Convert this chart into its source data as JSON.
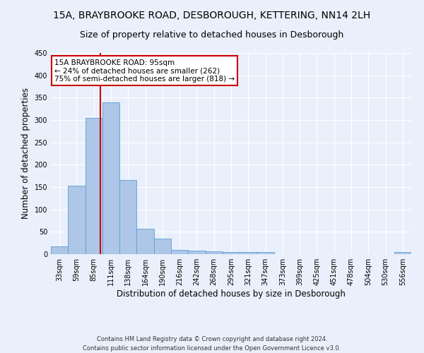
{
  "title": "15A, BRAYBROOKE ROAD, DESBOROUGH, KETTERING, NN14 2LH",
  "subtitle": "Size of property relative to detached houses in Desborough",
  "xlabel": "Distribution of detached houses by size in Desborough",
  "ylabel": "Number of detached properties",
  "footer_line1": "Contains HM Land Registry data © Crown copyright and database right 2024.",
  "footer_line2": "Contains public sector information licensed under the Open Government Licence v3.0.",
  "bar_labels": [
    "33sqm",
    "59sqm",
    "85sqm",
    "111sqm",
    "138sqm",
    "164sqm",
    "190sqm",
    "216sqm",
    "242sqm",
    "268sqm",
    "295sqm",
    "321sqm",
    "347sqm",
    "373sqm",
    "399sqm",
    "425sqm",
    "451sqm",
    "478sqm",
    "504sqm",
    "530sqm",
    "556sqm"
  ],
  "bar_values": [
    17,
    153,
    305,
    340,
    166,
    57,
    35,
    10,
    8,
    6,
    5,
    5,
    5,
    0,
    0,
    0,
    0,
    0,
    0,
    0,
    5
  ],
  "bar_color": "#aec6e8",
  "bar_edge_color": "#5a9fd4",
  "background_color": "#eaf0fb",
  "grid_color": "#ffffff",
  "annotation_text": "15A BRAYBROOKE ROAD: 95sqm\n← 24% of detached houses are smaller (262)\n75% of semi-detached houses are larger (818) →",
  "annotation_box_color": "#ffffff",
  "annotation_box_edge_color": "#cc0000",
  "vline_color": "#cc0000",
  "ylim": [
    0,
    450
  ],
  "title_fontsize": 10,
  "subtitle_fontsize": 9,
  "xlabel_fontsize": 8.5,
  "ylabel_fontsize": 8.5,
  "tick_fontsize": 7,
  "annotation_fontsize": 7.5,
  "footer_fontsize": 6
}
